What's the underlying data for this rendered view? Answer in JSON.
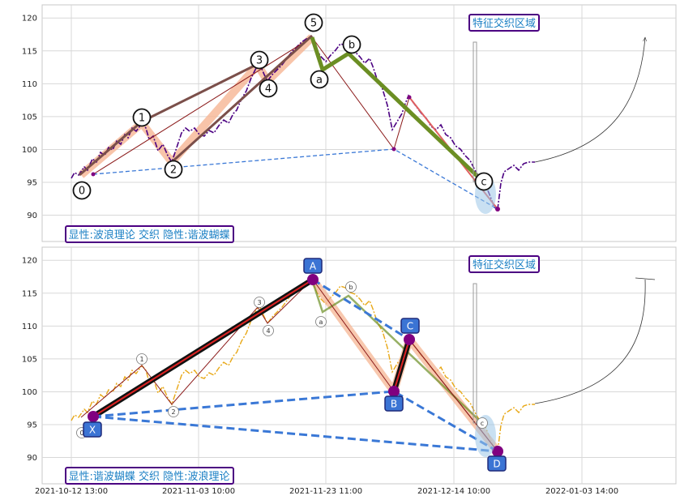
{
  "chart_data": [
    {
      "type": "line",
      "panel": "top",
      "ylim": [
        86,
        122
      ],
      "y_ticks": [
        90,
        95,
        100,
        105,
        110,
        115,
        120
      ],
      "grid": true,
      "label_box": "显性:波浪理论 交织 隐性:谐波蝴蝶",
      "zone_label": "特征交织区域",
      "price_color": "#4b0082",
      "wave_labels": [
        {
          "label": "0",
          "x": "2021-10-13 08:00",
          "y": 93.5
        },
        {
          "label": "1",
          "x": "2021-10-27 09:00",
          "y": 104.5
        },
        {
          "label": "2",
          "x": "2021-11-03 10:00",
          "y": 96.2
        },
        {
          "label": "3",
          "x": "2021-11-17 09:00",
          "y": 113.5
        },
        {
          "label": "4",
          "x": "2021-11-18 12:00",
          "y": 108.8
        },
        {
          "label": "5",
          "x": "2021-11-22 12:00",
          "y": 119.5
        },
        {
          "label": "a",
          "x": "2021-11-23 10:00",
          "y": 110.5
        },
        {
          "label": "b",
          "x": "2021-11-26 09:00",
          "y": 115.5
        },
        {
          "label": "c",
          "x": "2021-12-20 13:00",
          "y": 94.5
        }
      ],
      "wave_path": [
        {
          "x": "2021-10-13 20:00",
          "y": 95.5
        },
        {
          "x": "2021-10-27 09:00",
          "y": 103.5
        },
        {
          "x": "2021-11-03 10:00",
          "y": 97.0
        },
        {
          "x": "2021-11-17 09:00",
          "y": 112.5
        },
        {
          "x": "2021-11-18 14:00",
          "y": 109.5
        },
        {
          "x": "2021-11-22 12:00",
          "y": 117.0
        }
      ],
      "correction_path": [
        {
          "x": "2021-11-22 12:00",
          "y": 117.0
        },
        {
          "x": "2021-11-23 14:00",
          "y": 111.5
        },
        {
          "x": "2021-11-26 09:00",
          "y": 114.5
        },
        {
          "x": "2021-12-20 13:00",
          "y": 95.5
        }
      ],
      "price_path": [
        {
          "x": "2021-10-12 13:00",
          "y": 95.0
        },
        {
          "x": "2021-10-15 10:00",
          "y": 96.5
        },
        {
          "x": "2021-10-20 10:00",
          "y": 100.0
        },
        {
          "x": "2021-10-27 09:00",
          "y": 103.5
        },
        {
          "x": "2021-10-29 10:00",
          "y": 99.0
        },
        {
          "x": "2021-11-03 10:00",
          "y": 97.0
        },
        {
          "x": "2021-11-05 10:00",
          "y": 103.0
        },
        {
          "x": "2021-11-09 10:00",
          "y": 102.5
        },
        {
          "x": "2021-11-12 10:00",
          "y": 105.0
        },
        {
          "x": "2021-11-17 09:00",
          "y": 112.5
        },
        {
          "x": "2021-11-18 14:00",
          "y": 109.5
        },
        {
          "x": "2021-11-22 12:00",
          "y": 117.0
        },
        {
          "x": "2021-11-24 10:00",
          "y": 113.0
        },
        {
          "x": "2021-11-26 09:00",
          "y": 114.5
        },
        {
          "x": "2021-11-29 10:00",
          "y": 112.0
        },
        {
          "x": "2021-12-03 10:00",
          "y": 109.0
        },
        {
          "x": "2021-12-08 10:00",
          "y": 106.0
        },
        {
          "x": "2021-12-13 10:00",
          "y": 102.0
        },
        {
          "x": "2021-12-17 10:00",
          "y": 98.5
        },
        {
          "x": "2021-12-20 13:00",
          "y": 95.5
        },
        {
          "x": "2021-12-21 10:00",
          "y": 90.0
        },
        {
          "x": "2021-12-22 10:00",
          "y": 95.0
        },
        {
          "x": "2021-12-24 10:00",
          "y": 97.5
        },
        {
          "x": "2021-12-27 10:00",
          "y": 97.0
        }
      ],
      "harmonic_path": [
        {
          "x": "2021-10-17 10:00",
          "y": 95.5
        },
        {
          "x": "2021-11-22 12:00",
          "y": 117.0
        },
        {
          "x": "2021-12-13 10:00",
          "y": 99.5
        },
        {
          "x": "2021-12-14 12:00",
          "y": 107.5
        },
        {
          "x": "2021-12-21 10:00",
          "y": 90.0
        }
      ]
    },
    {
      "type": "line",
      "panel": "bottom",
      "ylim": [
        86,
        122
      ],
      "y_ticks": [
        90,
        95,
        100,
        105,
        110,
        115,
        120
      ],
      "grid": true,
      "label_box": "显性:谐波蝴蝶 交织 隐性:波浪理论",
      "zone_label": "特征交织区域",
      "price_color": "#e8a817",
      "harmonic_labels": [
        {
          "label": "X",
          "x": "2021-10-17 10:00",
          "y": 95.5
        },
        {
          "label": "A",
          "x": "2021-11-22 12:00",
          "y": 117.0
        },
        {
          "label": "B",
          "x": "2021-12-13 10:00",
          "y": 99.5
        },
        {
          "label": "C",
          "x": "2021-12-14 12:00",
          "y": 107.5
        },
        {
          "label": "D",
          "x": "2021-12-21 10:00",
          "y": 90.0
        }
      ],
      "small_wave_labels": [
        "0",
        "1",
        "2",
        "3",
        "4",
        "a",
        "b",
        "c"
      ],
      "x_ticks": [
        "2021-10-12 13:00",
        "2021-11-03 10:00",
        "2021-11-23 11:00",
        "2021-12-14 10:00",
        "2022-01-03 14:00"
      ]
    }
  ]
}
